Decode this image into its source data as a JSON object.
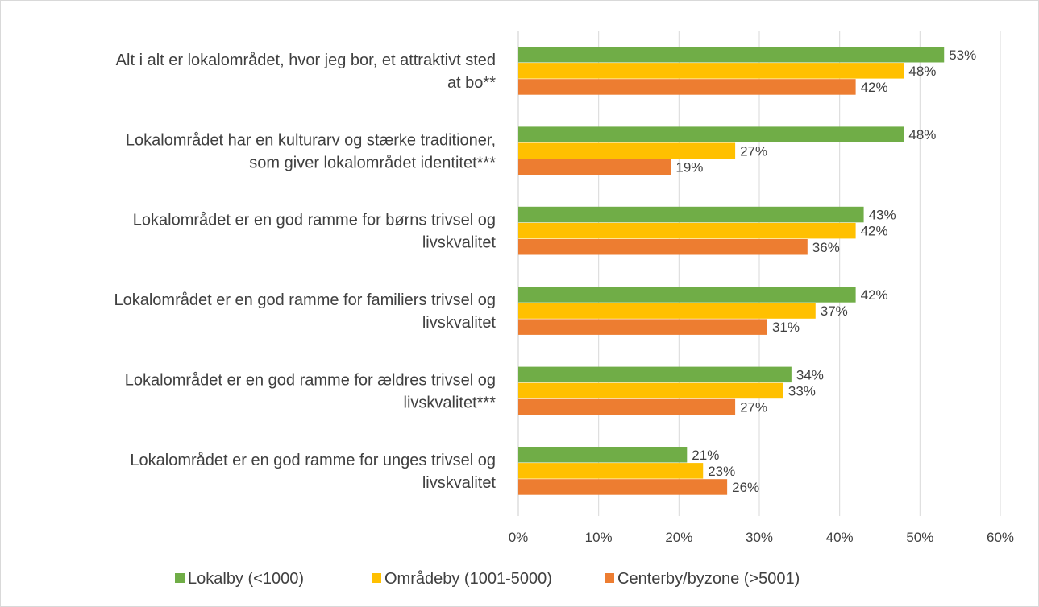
{
  "chart_data": {
    "type": "bar",
    "orientation": "horizontal",
    "categories": [
      [
        "Alt i alt er lokalområdet, hvor jeg bor, et attraktivt sted",
        "at bo**"
      ],
      [
        "Lokalområdet har en kulturarv og stærke traditioner,",
        "som giver lokalområdet identitet***"
      ],
      [
        "Lokalområdet er en god ramme for børns trivsel og",
        "livskvalitet"
      ],
      [
        "Lokalområdet er en god ramme for familiers trivsel og",
        "livskvalitet"
      ],
      [
        "Lokalområdet er en god ramme for ældres trivsel og",
        "livskvalitet***"
      ],
      [
        "Lokalområdet er en god ramme for unges trivsel og",
        "livskvalitet"
      ]
    ],
    "series": [
      {
        "name": "Lokalby (<1000)",
        "color": "#70ad47",
        "values": [
          53,
          48,
          43,
          42,
          34,
          21
        ],
        "labels": [
          "53%",
          "48%",
          "43%",
          "42%",
          "34%",
          "21%"
        ]
      },
      {
        "name": "Områdeby (1001-5000)",
        "color": "#ffc000",
        "values": [
          48,
          27,
          42,
          37,
          33,
          23
        ],
        "labels": [
          "48%",
          "27%",
          "42%",
          "37%",
          "33%",
          "23%"
        ]
      },
      {
        "name": "Centerby/byzone (>5001)",
        "color": "#ed7d31",
        "values": [
          42,
          19,
          36,
          31,
          27,
          26
        ],
        "labels": [
          "42%",
          "19%",
          "36%",
          "31%",
          "27%",
          "26%"
        ]
      }
    ],
    "xlim": [
      0,
      60
    ],
    "xticks": [
      "0%",
      "10%",
      "20%",
      "30%",
      "40%",
      "50%",
      "60%"
    ],
    "grid": true,
    "legend": "bottom"
  }
}
